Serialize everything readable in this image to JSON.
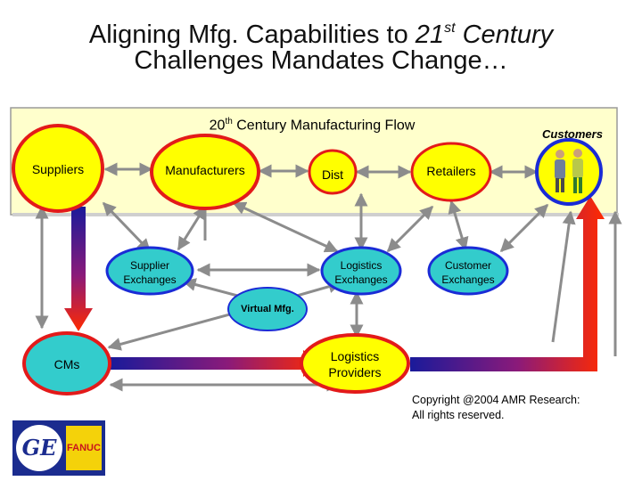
{
  "title": {
    "line1_prefix": "Aligning Mfg. Capabilities to ",
    "line1_num": "21",
    "line1_sup": "st",
    "line1_suffix": " Century",
    "line2": "Challenges Mandates Change…"
  },
  "flow_box": {
    "title_prefix": "20",
    "title_sup": "th",
    "title_suffix": " Century Manufacturing Flow",
    "customers_label": "Customers"
  },
  "nodes": {
    "suppliers": "Suppliers",
    "manufacturers": "Manufacturers",
    "dist": "Dist",
    "retailers": "Retailers",
    "supplier_exchanges": [
      "Supplier",
      "Exchanges"
    ],
    "logistics_exchanges": [
      "Logistics",
      "Exchanges"
    ],
    "customer_exchanges": [
      "Customer",
      "Exchanges"
    ],
    "virtual_mfg": "Virtual Mfg.",
    "cms": "CMs",
    "logistics_providers": [
      "Logistics",
      "Providers"
    ]
  },
  "copyright": [
    "Copyright @2004 AMR Research:",
    "All rights reserved."
  ],
  "logo": {
    "left_text": "GE",
    "right_text": "FANUC"
  },
  "colors": {
    "flow_box_fill": "#ffffcc",
    "yellow": "#ffff00",
    "cyan": "#33cccc",
    "red_border": "#e31a1a",
    "blue_border": "#1a2bd6",
    "arrow_gray": "#8c8c8c",
    "gradient_start": "#1a1a9a",
    "gradient_end": "#ff2a00"
  }
}
